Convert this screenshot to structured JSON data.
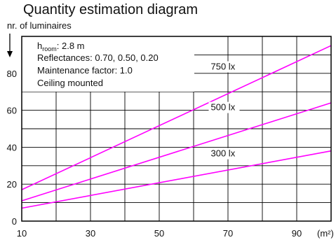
{
  "title": "Quantity estimation diagram",
  "chart_data": {
    "type": "line",
    "ylabel": "nr. of luminaires",
    "xlabel": "(m²)",
    "xlim": [
      10,
      100
    ],
    "ylim": [
      0,
      100
    ],
    "x_ticks": [
      10,
      30,
      50,
      70,
      90
    ],
    "y_ticks": [
      0,
      20,
      40,
      60,
      80
    ],
    "grid": true,
    "line_color": "#ff00ff",
    "info": {
      "h_room_symbol": "h",
      "h_room_subscript": "room",
      "h_room_value": ": 2.8 m",
      "reflectances": "Reflectances:  0.70, 0.50, 0.20",
      "maintenance": "Maintenance factor:  1.0",
      "mounting": "Ceiling mounted"
    },
    "series": [
      {
        "name": "750 lx",
        "x": [
          10,
          100
        ],
        "y": [
          17,
          95
        ],
        "label_at": [
          65,
          82
        ]
      },
      {
        "name": "500 lx",
        "x": [
          10,
          100
        ],
        "y": [
          11,
          64
        ],
        "label_at": [
          65,
          60
        ]
      },
      {
        "name": "300 lx",
        "x": [
          10,
          100
        ],
        "y": [
          7,
          38
        ],
        "label_at": [
          65,
          35
        ]
      }
    ]
  }
}
